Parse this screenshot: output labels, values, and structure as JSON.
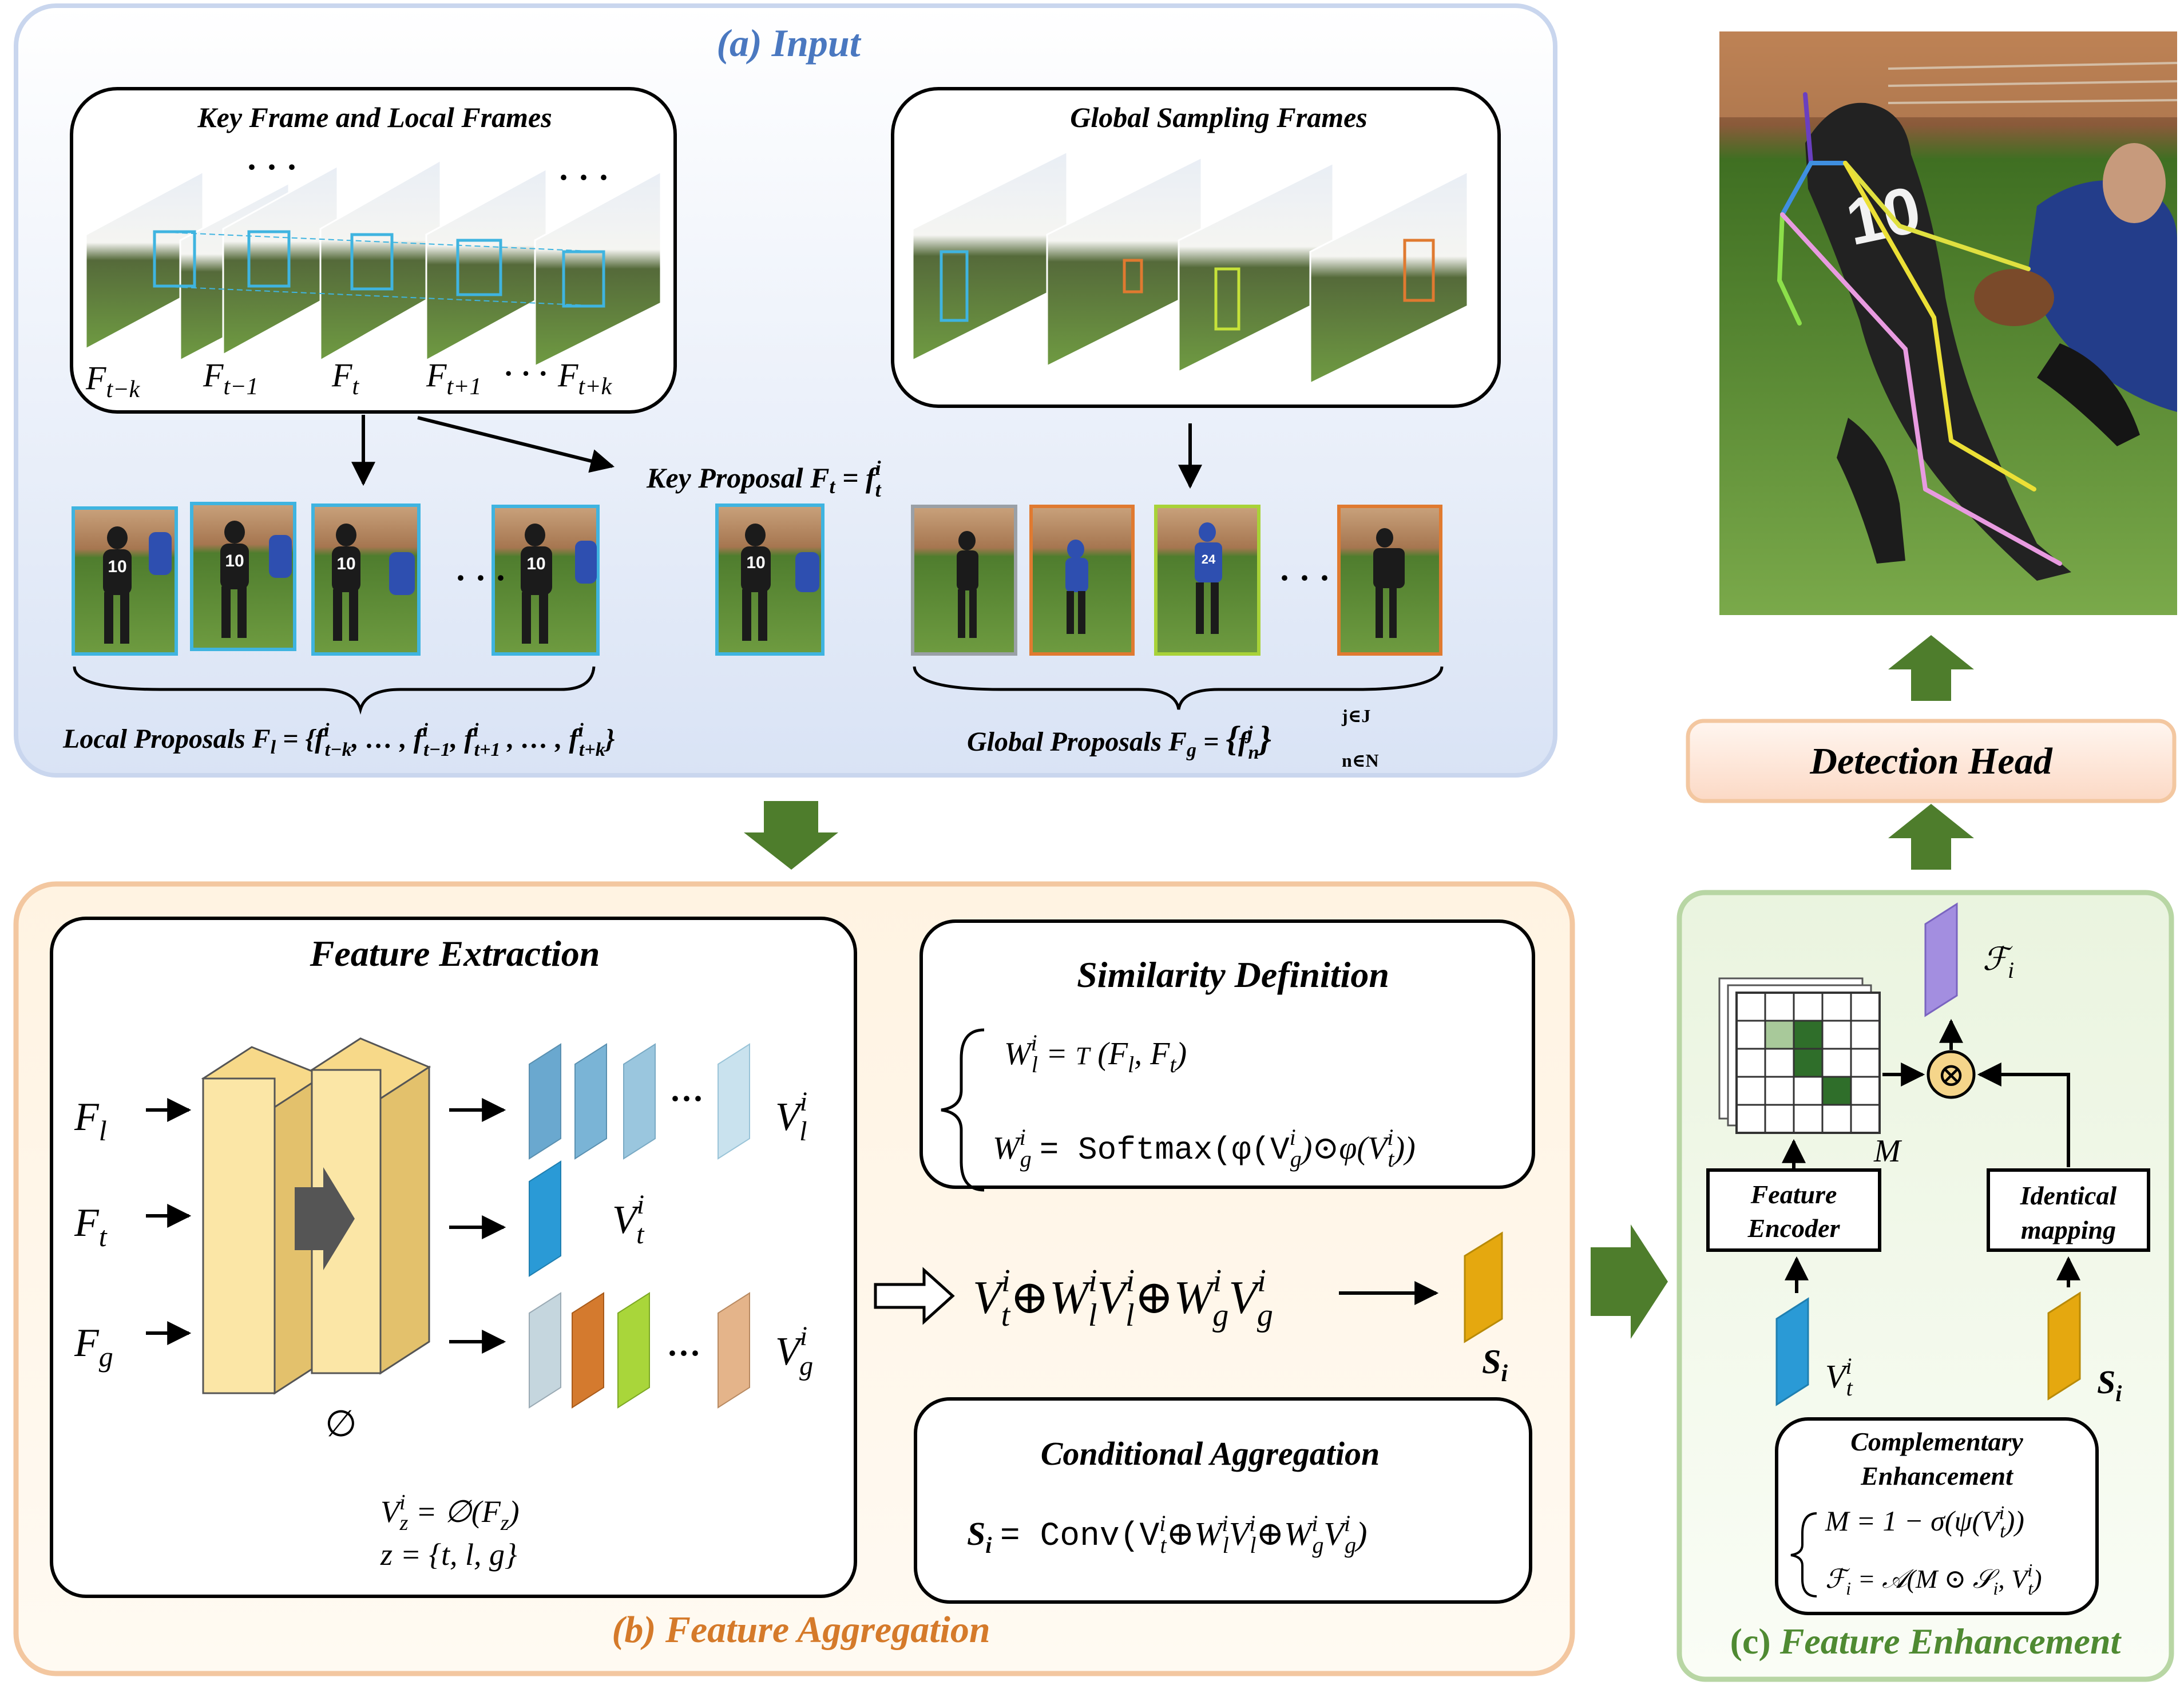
{
  "panel_a": {
    "title": "(a) Input",
    "key_local_box": {
      "title": "Key Frame and Local Frames",
      "ellipsis": "· · ·",
      "frame_labels": [
        "F",
        "F",
        "F",
        "F",
        "F"
      ],
      "frame_subs": [
        "t−k",
        "t−1",
        "t",
        "t+1",
        "t+k"
      ],
      "dots": "· · ·"
    },
    "global_box": {
      "title": "Global Sampling Frames"
    },
    "key_proposal": {
      "text": "Key Proposal",
      "f": "F",
      "fsub": "t",
      "eq": "=",
      "var": "f",
      "sup": "i",
      "sub": "t"
    },
    "proposal_dots": "· · ·",
    "local_proposals": {
      "lead": "Local Proposals",
      "F": "F",
      "Fsub": "l",
      "set": "= {f",
      "s1sup": "i",
      "s1sub": "t−k",
      "mid1": ", … , f",
      "s2sup": "i",
      "s2sub": "t−1",
      "mid2": ", f",
      "s3sup": "i",
      "s3sub": "t+1",
      "mid3": " , … , f",
      "s4sup": "i",
      "s4sub": "t+k",
      "end": "}"
    },
    "global_proposals": {
      "lead": "Global Proposals",
      "F": "F",
      "Fsub": "g",
      "eq": "=",
      "open": "{",
      "f": "f",
      "sup": "j",
      "sub": "n",
      "close": "}",
      "upper": "j∈J",
      "lower": "n∈N"
    },
    "player_number": "10",
    "player_number_2": "24"
  },
  "panel_b": {
    "title": "(b) Feature Aggregation",
    "feature_extraction": {
      "title": "Feature Extraction",
      "inputs": [
        {
          "F": "F",
          "sub": "l"
        },
        {
          "F": "F",
          "sub": "t"
        },
        {
          "F": "F",
          "sub": "g"
        }
      ],
      "phi": "∅",
      "outputs": [
        {
          "V": "V",
          "sup": "i",
          "sub": "l"
        },
        {
          "V": "V",
          "sup": "i",
          "sub": "t"
        },
        {
          "V": "V",
          "sup": "i",
          "sub": "g"
        }
      ],
      "dots": "···",
      "eq1": {
        "V": "V",
        "sup": "i",
        "sub": "z",
        "rhs": "= ∅(F",
        "rsub": "z",
        "end": ")"
      },
      "eq2": "z = {t, l, g}"
    },
    "similarity": {
      "title": "Similarity Definition",
      "w_l": {
        "W": "W",
        "sup": "i",
        "sub": "l",
        "rhs": "=",
        "T": "T",
        "args": "(F",
        "a1": "l",
        "c": ", F",
        "a2": "t",
        "end": ")"
      },
      "w_g": {
        "W": "W",
        "sup": "i",
        "sub": "g",
        "rhs": "= Softmax(φ(V",
        "s1sup": "i",
        "s1sub": "g",
        "mid": ")⊙φ(V",
        "s2sup": "i",
        "s2sub": "t",
        "end": "))"
      }
    },
    "sum_expr": {
      "V": "V",
      "op": "⊕",
      "W": "W",
      "sup": "i",
      "sub_t": "t",
      "sub_l": "l",
      "sub_g": "g"
    },
    "s_label": {
      "S": "S",
      "sub": "i"
    },
    "conditional": {
      "title": "Conditional Aggregation",
      "S": "S",
      "sub": "i",
      "rhs": "= Conv(V",
      "sup": "i",
      "subt": "t",
      "op": "⊕",
      "W": "W",
      "l": "l",
      "g": "g",
      "close": ")"
    }
  },
  "panel_c": {
    "title_prefix": "(c)",
    "title": "Feature Enhancement",
    "script_f": {
      "F": "ℱ",
      "sub": "i"
    },
    "M": "M",
    "otimes": "⊗",
    "encoder": {
      "line1": "Feature",
      "line2": "Encoder"
    },
    "identical": {
      "line1": "Identical",
      "line2": "mapping"
    },
    "vt": {
      "V": "V",
      "sup": "i",
      "sub": "t"
    },
    "si": {
      "S": "S",
      "sub": "i"
    },
    "complementary": {
      "line1": "Complementary",
      "line2": "Enhancement",
      "eq1": "M = 1 − σ(ψ(V",
      "eq1sup": "i",
      "eq1sub": "t",
      "eq1end": "))",
      "eq2": "ℱ",
      "eq2sub": "i",
      "eq2rhs": "= 𝒜(M ⊙ 𝒮",
      "eq2s": "i",
      "eq2mid": ", V",
      "eq2sup": "i",
      "eq2sub2": "t",
      "eq2end": ")"
    }
  },
  "detection_head": {
    "label": "Detection Head"
  },
  "colors": {
    "blue_title": "#4a78c0",
    "orange_title": "#d57a2a",
    "green_title": "#4f8a32",
    "arrow_green": "#4e7d2c",
    "panel_a_border": "#c9d6ee",
    "panel_b_border": "#f3c7a0",
    "panel_c_border": "#b8d6a4"
  }
}
